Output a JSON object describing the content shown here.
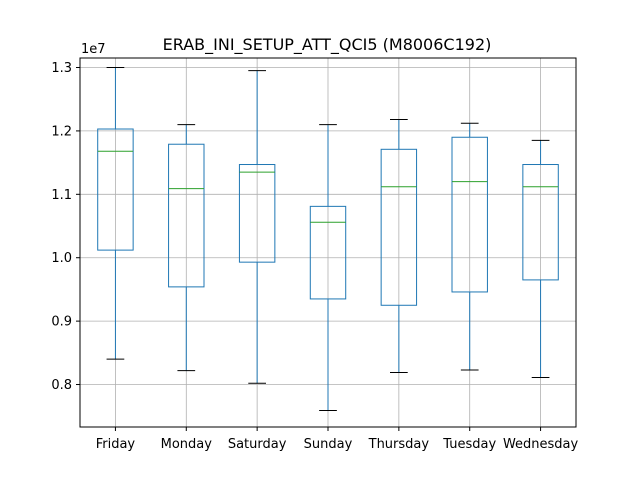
{
  "chart_data": {
    "type": "box",
    "title": "ERAB_INI_SETUP_ATT_QCI5 (M8006C192)",
    "offset_text": "1e7",
    "xlabel": "",
    "ylabel": "",
    "categories": [
      "Friday",
      "Monday",
      "Saturday",
      "Sunday",
      "Thursday",
      "Tuesday",
      "Wednesday"
    ],
    "yticks": [
      0.8,
      0.9,
      1.0,
      1.1,
      1.2,
      1.3
    ],
    "ytick_labels": [
      "0.8",
      "0.9",
      "1.0",
      "1.1",
      "1.2",
      "1.3"
    ],
    "ylim": [
      0.733,
      1.315
    ],
    "grid": true,
    "boxes": [
      {
        "category": "Friday",
        "whisker_low": 0.84,
        "q1": 1.012,
        "median": 1.168,
        "q3": 1.203,
        "whisker_high": 1.3
      },
      {
        "category": "Monday",
        "whisker_low": 0.822,
        "q1": 0.954,
        "median": 1.109,
        "q3": 1.179,
        "whisker_high": 1.21
      },
      {
        "category": "Saturday",
        "whisker_low": 0.802,
        "q1": 0.993,
        "median": 1.135,
        "q3": 1.147,
        "whisker_high": 1.295
      },
      {
        "category": "Sunday",
        "whisker_low": 0.759,
        "q1": 0.935,
        "median": 1.056,
        "q3": 1.081,
        "whisker_high": 1.21
      },
      {
        "category": "Thursday",
        "whisker_low": 0.819,
        "q1": 0.925,
        "median": 1.112,
        "q3": 1.171,
        "whisker_high": 1.218
      },
      {
        "category": "Tuesday",
        "whisker_low": 0.823,
        "q1": 0.946,
        "median": 1.12,
        "q3": 1.19,
        "whisker_high": 1.212
      },
      {
        "category": "Wednesday",
        "whisker_low": 0.811,
        "q1": 0.965,
        "median": 1.112,
        "q3": 1.147,
        "whisker_high": 1.185
      }
    ],
    "colors": {
      "box": "#1f77b4",
      "median": "#2ca02c",
      "cap": "#000000",
      "grid": "#b0b0b0"
    }
  }
}
